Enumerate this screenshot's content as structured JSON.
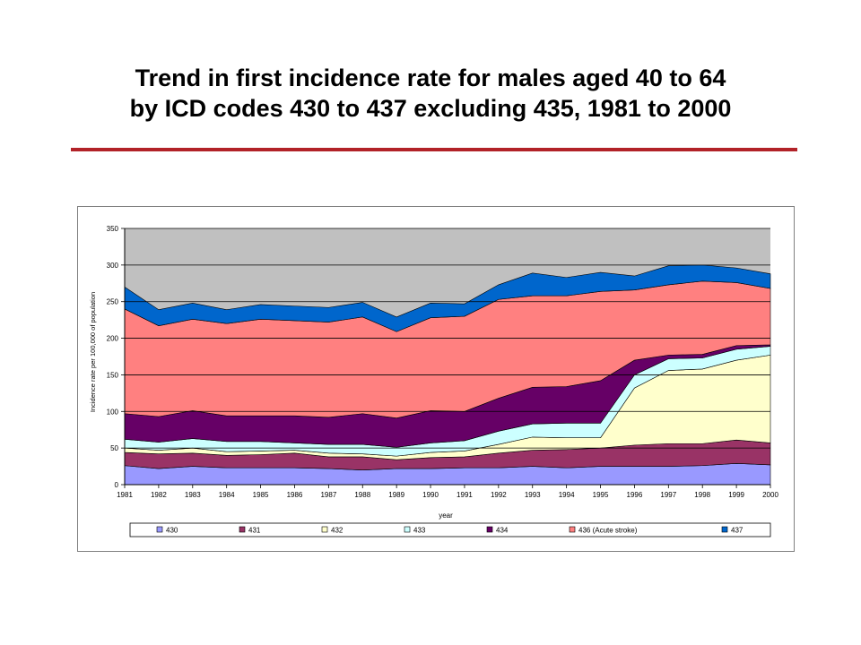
{
  "title": {
    "line1": "Trend in first incidence rate for males aged 40 to 64",
    "line2": "by ICD codes 430 to 437 excluding 435, 1981 to 2000"
  },
  "colors": {
    "accent_rule": "#b22228",
    "plot_background": "#c0c0c0"
  },
  "chart_data": {
    "type": "area",
    "stacked": true,
    "xlabel": "year",
    "ylabel": "Incidence rate per 100,000 of population",
    "ylim": [
      0,
      350
    ],
    "yticks": [
      0,
      50,
      100,
      150,
      200,
      250,
      300,
      350
    ],
    "grid": "horizontal",
    "legend_position": "bottom",
    "categories": [
      "1981",
      "1982",
      "1983",
      "1984",
      "1985",
      "1986",
      "1987",
      "1988",
      "1989",
      "1990",
      "1991",
      "1992",
      "1993",
      "1994",
      "1995",
      "1996",
      "1997",
      "1998",
      "1999",
      "2000"
    ],
    "series": [
      {
        "name": "430",
        "color": "#9999ff",
        "values": [
          26,
          22,
          25,
          23,
          23,
          23,
          22,
          20,
          22,
          22,
          23,
          23,
          25,
          23,
          25,
          25,
          25,
          26,
          29,
          27
        ]
      },
      {
        "name": "431",
        "color": "#993366",
        "values": [
          18,
          20,
          18,
          17,
          18,
          20,
          16,
          18,
          12,
          15,
          15,
          20,
          22,
          25,
          25,
          29,
          31,
          30,
          32,
          30
        ]
      },
      {
        "name": "432",
        "color": "#ffffcc",
        "values": [
          6,
          5,
          7,
          5,
          5,
          4,
          5,
          4,
          5,
          7,
          8,
          12,
          18,
          16,
          14,
          78,
          100,
          102,
          109,
          120
        ]
      },
      {
        "name": "433",
        "color": "#ccffff",
        "values": [
          12,
          11,
          13,
          14,
          13,
          10,
          12,
          13,
          12,
          13,
          14,
          18,
          18,
          20,
          20,
          18,
          16,
          15,
          15,
          12
        ]
      },
      {
        "name": "434",
        "color": "#660066",
        "values": [
          35,
          35,
          38,
          35,
          35,
          37,
          37,
          42,
          40,
          44,
          40,
          45,
          50,
          50,
          58,
          20,
          5,
          5,
          5,
          2
        ]
      },
      {
        "name": "436 (Acute stroke)",
        "color": "#ff8080",
        "values": [
          143,
          124,
          125,
          126,
          132,
          130,
          130,
          132,
          118,
          127,
          130,
          135,
          125,
          124,
          122,
          96,
          96,
          100,
          86,
          77
        ]
      },
      {
        "name": "437",
        "color": "#0066cc",
        "values": [
          30,
          22,
          22,
          19,
          20,
          20,
          20,
          20,
          20,
          20,
          17,
          20,
          31,
          25,
          26,
          19,
          26,
          22,
          20,
          20
        ]
      }
    ]
  }
}
